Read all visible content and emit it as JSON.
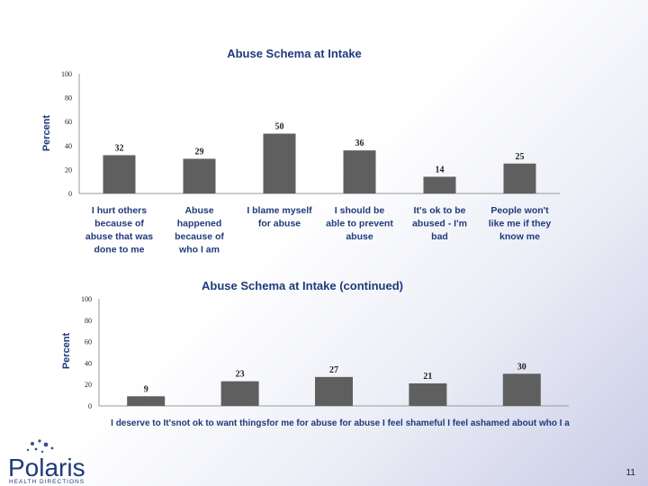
{
  "chart_data": [
    {
      "type": "bar",
      "title": "Abuse Schema at Intake",
      "ylabel": "Percent",
      "ylim": [
        0,
        100
      ],
      "yticks": [
        0,
        20,
        40,
        60,
        80,
        100
      ],
      "categories": [
        "I hurt others because of abuse that was done to me",
        "Abuse happened because of who I am",
        "I blame myself for abuse",
        "I should be able to prevent abuse",
        "It's ok to be abused - I'm bad",
        "People won't like me if they know me"
      ],
      "category_lines": [
        [
          "I hurt others",
          "because of",
          "abuse that was",
          "done to me"
        ],
        [
          "Abuse",
          "happened",
          "because of",
          "who I am"
        ],
        [
          "I blame myself",
          "for abuse"
        ],
        [
          "I should be",
          "able to prevent",
          "abuse"
        ],
        [
          "It's ok to be",
          "abused - I'm",
          "bad"
        ],
        [
          "People won't",
          "like me if they",
          "know me"
        ]
      ],
      "values": [
        32,
        29,
        50,
        36,
        14,
        25
      ],
      "data_labels": [
        "32",
        "29",
        "50",
        "36",
        "14",
        "25"
      ],
      "grid": false,
      "legend": "none"
    },
    {
      "type": "bar",
      "title": "Abuse Schema at Intake (continued)",
      "ylabel": "Percent",
      "ylim": [
        0,
        100
      ],
      "yticks": [
        0,
        20,
        40,
        60,
        80,
        100
      ],
      "categories": [
        "I deserve to be hurt",
        "It's not ok to want things for me",
        "I am to blame for abuse",
        "I feel shameful",
        "I feel ashamed about who I a"
      ],
      "category_label_overlap": "I deserve to It'snot ok to want thingsfor me for abuse for abuse I feel shameful I feel ashamed about who I a",
      "values": [
        9,
        23,
        27,
        21,
        30
      ],
      "data_labels": [
        "9",
        "23",
        "27",
        "21",
        "30"
      ],
      "grid": false,
      "legend": "none"
    }
  ],
  "footer": {
    "logo_name": "Polaris",
    "logo_sub": "HEALTH DIRECTIONS",
    "logo_icon": "star-cluster-icon",
    "page_number": "11"
  }
}
